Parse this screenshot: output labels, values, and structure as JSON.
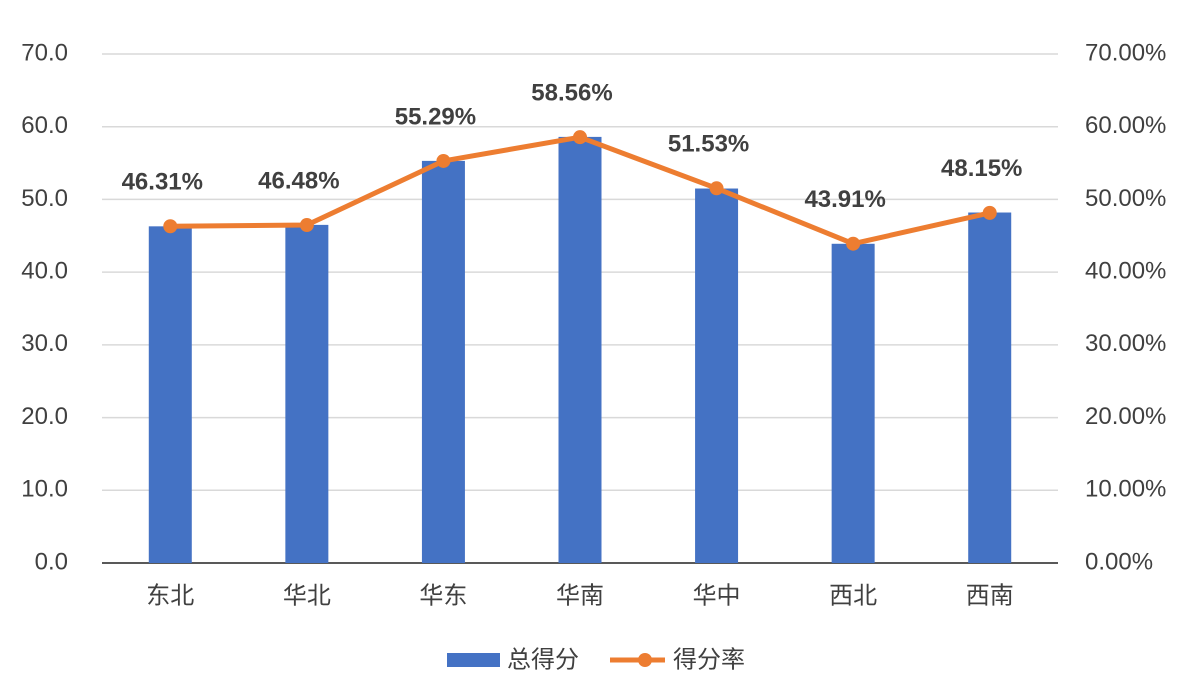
{
  "chart_data": {
    "type": "bar",
    "categories": [
      "东北",
      "华北",
      "华东",
      "华南",
      "华中",
      "西北",
      "西南"
    ],
    "series": [
      {
        "name": "总得分",
        "type": "bar",
        "color": "#4472c4",
        "values": [
          46.3,
          46.5,
          55.3,
          58.6,
          51.5,
          43.9,
          48.2
        ]
      },
      {
        "name": "得分率",
        "type": "line",
        "axis": "y2",
        "color": "#ed7d31",
        "values": [
          46.31,
          46.48,
          55.29,
          58.56,
          51.53,
          43.91,
          48.15
        ],
        "value_labels": [
          "46.31%",
          "46.48%",
          "55.29%",
          "58.56%",
          "51.53%",
          "43.91%",
          "48.15%"
        ]
      }
    ],
    "ylim": [
      0,
      70
    ],
    "yticks": [
      {
        "value": 0,
        "label": "0.0"
      },
      {
        "value": 10,
        "label": "10.0"
      },
      {
        "value": 20,
        "label": "20.0"
      },
      {
        "value": 30,
        "label": "30.0"
      },
      {
        "value": 40,
        "label": "40.0"
      },
      {
        "value": 50,
        "label": "50.0"
      },
      {
        "value": 60,
        "label": "60.0"
      },
      {
        "value": 70,
        "label": "70.0"
      }
    ],
    "y2lim": [
      0,
      70
    ],
    "y2ticks": [
      {
        "value": 0,
        "label": "0.00%"
      },
      {
        "value": 10,
        "label": "10.00%"
      },
      {
        "value": 20,
        "label": "20.00%"
      },
      {
        "value": 30,
        "label": "30.00%"
      },
      {
        "value": 40,
        "label": "40.00%"
      },
      {
        "value": 50,
        "label": "50.00%"
      },
      {
        "value": 60,
        "label": "60.00%"
      },
      {
        "value": 70,
        "label": "70.00%"
      }
    ],
    "grid": true,
    "legend": "bottom"
  }
}
